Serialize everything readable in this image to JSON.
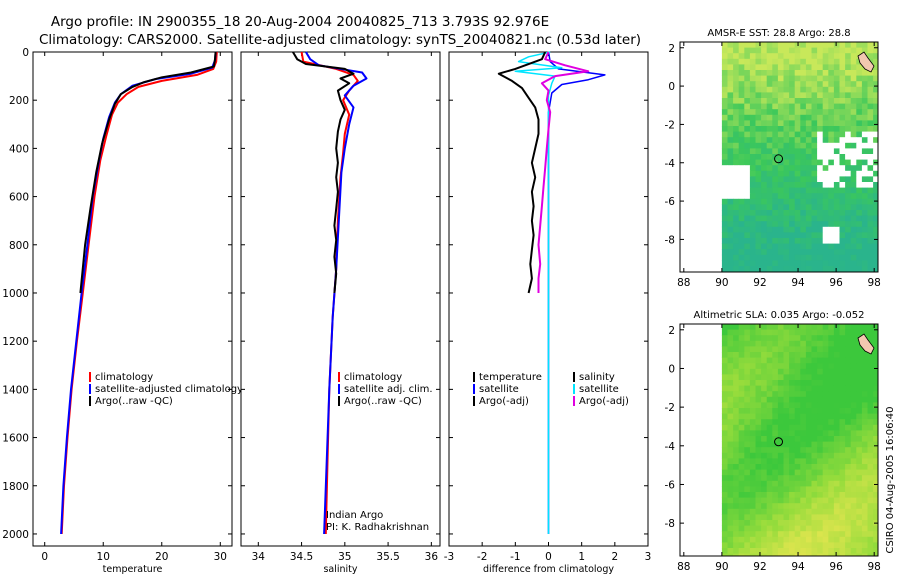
{
  "title_line1": "Argo profile: IN 2900355_18 20-Aug-2004 20040825_713 3.793S 92.976E",
  "title_line2": "Climatology: CARS2000. Satellite-adjusted climatology: synTS_20040821.nc (0.53d later)",
  "side_label": "CSIRO 04-Aug-2005 16:06:40",
  "colors": {
    "red": "#ff0000",
    "blue": "#0000ff",
    "black": "#000000",
    "cyan": "#00e5ff",
    "magenta": "#e000e0"
  },
  "chart_data": [
    {
      "type": "line",
      "name": "temperature",
      "xlabel": "temperature",
      "xlim": [
        -2,
        32
      ],
      "ylim": [
        2050,
        0
      ],
      "xticks": [
        "0",
        "10",
        "20",
        "30"
      ],
      "xtick_values": [
        0,
        10,
        20,
        30
      ],
      "yticks": [
        "0",
        "200",
        "400",
        "600",
        "800",
        "1000",
        "1200",
        "1400",
        "1600",
        "1800",
        "2000"
      ],
      "ytick_values": [
        0,
        200,
        400,
        600,
        800,
        1000,
        1200,
        1400,
        1600,
        1800,
        2000
      ],
      "legend": [
        "climatology",
        "satellite-adjusted climatology",
        "Argo(..raw -QC)"
      ],
      "series": [
        {
          "name": "climatology",
          "color": "red",
          "width": 2,
          "points": [
            [
              29.4,
              0
            ],
            [
              29.3,
              40
            ],
            [
              28.8,
              70
            ],
            [
              26,
              95
            ],
            [
              20,
              120
            ],
            [
              16,
              145
            ],
            [
              14,
              175
            ],
            [
              12.5,
              210
            ],
            [
              11.5,
              260
            ],
            [
              10.5,
              350
            ],
            [
              9.5,
              450
            ],
            [
              8.5,
              600
            ],
            [
              7.5,
              800
            ],
            [
              6.5,
              1000
            ],
            [
              5.5,
              1200
            ],
            [
              4.6,
              1400
            ],
            [
              3.9,
              1600
            ],
            [
              3.3,
              1800
            ],
            [
              2.9,
              2000
            ]
          ]
        },
        {
          "name": "satellite-adjusted climatology",
          "color": "blue",
          "width": 2,
          "points": [
            [
              29.2,
              0
            ],
            [
              29.1,
              35
            ],
            [
              28.6,
              65
            ],
            [
              25,
              90
            ],
            [
              19,
              112
            ],
            [
              15,
              140
            ],
            [
              13,
              175
            ],
            [
              12,
              210
            ],
            [
              11,
              270
            ],
            [
              10,
              360
            ],
            [
              9.2,
              460
            ],
            [
              8.2,
              600
            ],
            [
              7.3,
              800
            ],
            [
              6.3,
              1000
            ],
            [
              5.4,
              1200
            ],
            [
              4.5,
              1400
            ],
            [
              3.8,
              1600
            ],
            [
              3.2,
              1800
            ],
            [
              2.8,
              2000
            ]
          ]
        },
        {
          "name": "Argo(..raw -QC)",
          "color": "black",
          "width": 2,
          "points": [
            [
              29.2,
              0
            ],
            [
              29.1,
              30
            ],
            [
              28.9,
              60
            ],
            [
              25,
              85
            ],
            [
              20,
              105
            ],
            [
              17,
              125
            ],
            [
              15,
              145
            ],
            [
              13,
              175
            ],
            [
              12,
              215
            ],
            [
              11,
              280
            ],
            [
              9.8,
              380
            ],
            [
              8.8,
              500
            ],
            [
              7.8,
              650
            ],
            [
              6.9,
              800
            ],
            [
              6.1,
              1000
            ]
          ]
        }
      ]
    },
    {
      "type": "line",
      "name": "salinity",
      "xlabel": "salinity",
      "xlim": [
        33.8,
        36.1
      ],
      "ylim": [
        2050,
        0
      ],
      "xticks": [
        "34",
        "34.5",
        "35",
        "35.5",
        "36"
      ],
      "xtick_values": [
        34,
        34.5,
        35,
        35.5,
        36
      ],
      "legend": [
        "climatology",
        "satellite adj. clim.",
        "Argo(..raw -QC)"
      ],
      "annotation": [
        "Indian Argo",
        "PI: K. Radhakrishnan"
      ],
      "series": [
        {
          "name": "climatology",
          "color": "red",
          "width": 2,
          "points": [
            [
              34.5,
              0
            ],
            [
              34.52,
              40
            ],
            [
              34.9,
              70
            ],
            [
              35.1,
              95
            ],
            [
              35.15,
              120
            ],
            [
              35.05,
              160
            ],
            [
              34.98,
              200
            ],
            [
              35.05,
              260
            ],
            [
              35.0,
              340
            ],
            [
              34.98,
              420
            ],
            [
              34.95,
              520
            ],
            [
              34.92,
              700
            ],
            [
              34.9,
              900
            ],
            [
              34.86,
              1100
            ],
            [
              34.82,
              1400
            ],
            [
              34.8,
              1700
            ],
            [
              34.78,
              2000
            ]
          ]
        },
        {
          "name": "satellite adj. clim.",
          "color": "blue",
          "width": 2,
          "points": [
            [
              34.55,
              0
            ],
            [
              34.6,
              30
            ],
            [
              34.7,
              55
            ],
            [
              35.2,
              85
            ],
            [
              35.25,
              110
            ],
            [
              35.1,
              140
            ],
            [
              35.0,
              180
            ],
            [
              35.1,
              230
            ],
            [
              35.05,
              300
            ],
            [
              35.0,
              400
            ],
            [
              34.96,
              500
            ],
            [
              34.93,
              700
            ],
            [
              34.9,
              900
            ],
            [
              34.86,
              1100
            ],
            [
              34.82,
              1400
            ],
            [
              34.79,
              1700
            ],
            [
              34.76,
              2000
            ]
          ]
        },
        {
          "name": "Argo(..raw -QC)",
          "color": "black",
          "width": 2,
          "points": [
            [
              34.4,
              0
            ],
            [
              34.45,
              30
            ],
            [
              34.55,
              50
            ],
            [
              35.0,
              70
            ],
            [
              35.1,
              90
            ],
            [
              34.95,
              110
            ],
            [
              35.05,
              130
            ],
            [
              34.92,
              160
            ],
            [
              34.95,
              200
            ],
            [
              35.0,
              240
            ],
            [
              34.95,
              280
            ],
            [
              34.92,
              330
            ],
            [
              34.9,
              400
            ],
            [
              34.92,
              460
            ],
            [
              34.9,
              520
            ],
            [
              34.92,
              580
            ],
            [
              34.9,
              650
            ],
            [
              34.88,
              720
            ],
            [
              34.9,
              780
            ],
            [
              34.88,
              850
            ],
            [
              34.9,
              920
            ],
            [
              34.88,
              1000
            ]
          ]
        }
      ]
    },
    {
      "type": "line",
      "name": "difference",
      "xlabel": "difference from climatology",
      "xlim": [
        -3,
        3
      ],
      "ylim": [
        2050,
        0
      ],
      "xticks": [
        "-3",
        "-2",
        "-1",
        "0",
        "1",
        "2",
        "3"
      ],
      "xtick_values": [
        -3,
        -2,
        -1,
        0,
        1,
        2,
        3
      ],
      "legend_left": [
        "temperature",
        "satellite",
        "Argo(-adj)"
      ],
      "legend_right": [
        "salinity",
        "satellite",
        "Argo(-adj)"
      ],
      "series": [
        {
          "name": "temperature satellite",
          "color": "blue",
          "width": 1.5,
          "points": [
            [
              0,
              0
            ],
            [
              0.05,
              40
            ],
            [
              0.3,
              70
            ],
            [
              1.7,
              95
            ],
            [
              1.2,
              115
            ],
            [
              0.4,
              135
            ],
            [
              0.1,
              170
            ],
            [
              0,
              250
            ],
            [
              0,
              400
            ],
            [
              0,
              700
            ],
            [
              0,
              1000
            ],
            [
              0,
              1400
            ],
            [
              0,
              1700
            ],
            [
              0,
              2000
            ]
          ]
        },
        {
          "name": "salinity satellite",
          "color": "cyan",
          "width": 1.5,
          "points": [
            [
              0.05,
              0
            ],
            [
              -0.6,
              20
            ],
            [
              -0.9,
              40
            ],
            [
              0.4,
              65
            ],
            [
              -1.0,
              80
            ],
            [
              0.2,
              100
            ],
            [
              0.1,
              130
            ],
            [
              0,
              180
            ],
            [
              0,
              300
            ],
            [
              0,
              600
            ],
            [
              0,
              1000
            ],
            [
              0,
              1400
            ],
            [
              0,
              1700
            ],
            [
              0,
              2000
            ]
          ]
        },
        {
          "name": "temperature Argo(-adj)",
          "color": "black",
          "width": 2,
          "points": [
            [
              -0.1,
              0
            ],
            [
              -0.2,
              30
            ],
            [
              -1.0,
              70
            ],
            [
              -1.5,
              90
            ],
            [
              -1.1,
              120
            ],
            [
              -0.8,
              150
            ],
            [
              -0.6,
              190
            ],
            [
              -0.4,
              230
            ],
            [
              -0.3,
              280
            ],
            [
              -0.3,
              340
            ],
            [
              -0.4,
              400
            ],
            [
              -0.5,
              460
            ],
            [
              -0.4,
              520
            ],
            [
              -0.5,
              580
            ],
            [
              -0.45,
              640
            ],
            [
              -0.5,
              700
            ],
            [
              -0.45,
              760
            ],
            [
              -0.5,
              820
            ],
            [
              -0.55,
              880
            ],
            [
              -0.5,
              940
            ],
            [
              -0.6,
              1000
            ]
          ]
        },
        {
          "name": "salinity Argo(-adj)",
          "color": "magenta",
          "width": 2,
          "points": [
            [
              0,
              0
            ],
            [
              -0.1,
              30
            ],
            [
              0.5,
              55
            ],
            [
              1.2,
              80
            ],
            [
              0.2,
              100
            ],
            [
              -0.2,
              130
            ],
            [
              0,
              160
            ],
            [
              -0.05,
              200
            ],
            [
              0.05,
              250
            ],
            [
              0.0,
              320
            ],
            [
              -0.05,
              400
            ],
            [
              -0.1,
              480
            ],
            [
              -0.15,
              560
            ],
            [
              -0.2,
              640
            ],
            [
              -0.25,
              720
            ],
            [
              -0.3,
              800
            ],
            [
              -0.25,
              880
            ],
            [
              -0.3,
              940
            ],
            [
              -0.3,
              1000
            ]
          ]
        }
      ]
    },
    {
      "type": "heatmap",
      "name": "sst_map",
      "title": "AMSR-E SST: 28.8 Argo: 28.8",
      "xlim": [
        87.8,
        98.2
      ],
      "ylim": [
        -9.7,
        2.3
      ],
      "xticks": [
        "88",
        "90",
        "92",
        "94",
        "96",
        "98"
      ],
      "xtick_values": [
        88,
        90,
        92,
        94,
        96,
        98
      ],
      "yticks": [
        "2",
        "0",
        "-2",
        "-4",
        "-6",
        "-8"
      ],
      "ytick_values": [
        2,
        0,
        -2,
        -4,
        -6,
        -8
      ],
      "argo_position": [
        92.976,
        -3.793
      ],
      "data_extent_lon": [
        90,
        98.2
      ]
    },
    {
      "type": "heatmap",
      "name": "sla_map",
      "title": "Altimetric SLA: 0.035 Argo: -0.052",
      "xlim": [
        87.8,
        98.2
      ],
      "ylim": [
        -9.7,
        2.3
      ],
      "xticks": [
        "88",
        "90",
        "92",
        "94",
        "96",
        "98"
      ],
      "xtick_values": [
        88,
        90,
        92,
        94,
        96,
        98
      ],
      "yticks": [
        "2",
        "0",
        "-2",
        "-4",
        "-6",
        "-8"
      ],
      "ytick_values": [
        2,
        0,
        -2,
        -4,
        -6,
        -8
      ],
      "argo_position": [
        92.976,
        -3.793
      ],
      "data_extent_lon": [
        90,
        98.2
      ]
    }
  ]
}
